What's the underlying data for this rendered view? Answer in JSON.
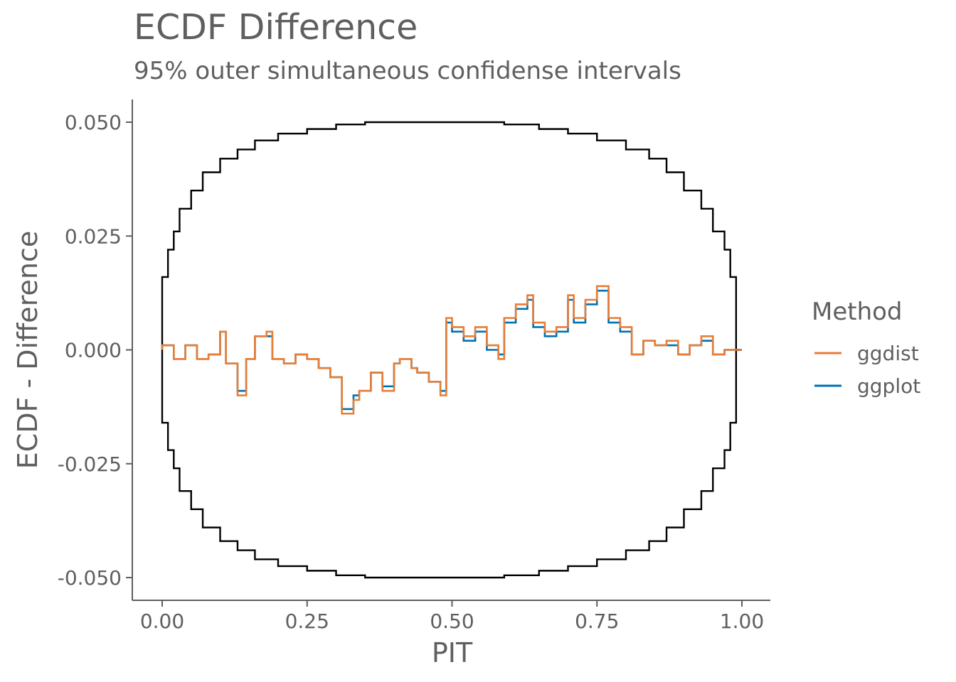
{
  "chart_data": {
    "type": "line",
    "title": "ECDF Difference",
    "subtitle": "95% outer simultaneous confidense intervals",
    "xlabel": "PIT",
    "ylabel": "ECDF - Difference",
    "xlim": [
      0,
      1
    ],
    "ylim": [
      -0.05,
      0.05
    ],
    "x_ticks": [
      "0.00",
      "0.25",
      "0.50",
      "0.75",
      "1.00"
    ],
    "y_ticks": [
      "0.050",
      "0.025",
      "0.000",
      "-0.025",
      "-0.050"
    ],
    "x_tick_values": [
      0,
      0.25,
      0.5,
      0.75,
      1
    ],
    "y_tick_values": [
      0.05,
      0.025,
      0,
      -0.025,
      -0.05
    ],
    "grid": false,
    "legend": {
      "title": "Method",
      "position": "right"
    },
    "envelope": {
      "color": "#000000",
      "x": [
        0,
        0.01,
        0.02,
        0.03,
        0.05,
        0.07,
        0.1,
        0.13,
        0.16,
        0.2,
        0.25,
        0.3,
        0.35,
        0.41,
        0.45,
        0.5,
        0.55,
        0.59,
        0.65,
        0.7,
        0.75,
        0.8,
        0.84,
        0.87,
        0.9,
        0.93,
        0.95,
        0.97,
        0.98,
        0.99,
        1
      ],
      "upper": [
        0,
        0.016,
        0.022,
        0.026,
        0.031,
        0.035,
        0.039,
        0.042,
        0.044,
        0.046,
        0.0475,
        0.0485,
        0.0495,
        0.05,
        0.05,
        0.05,
        0.05,
        0.05,
        0.0495,
        0.0485,
        0.0475,
        0.046,
        0.044,
        0.042,
        0.039,
        0.035,
        0.031,
        0.026,
        0.022,
        0.016,
        0
      ],
      "lower": [
        0,
        -0.016,
        -0.022,
        -0.026,
        -0.031,
        -0.035,
        -0.039,
        -0.042,
        -0.044,
        -0.046,
        -0.0475,
        -0.0485,
        -0.0495,
        -0.05,
        -0.05,
        -0.05,
        -0.05,
        -0.05,
        -0.0495,
        -0.0485,
        -0.0475,
        -0.046,
        -0.044,
        -0.042,
        -0.039,
        -0.035,
        -0.031,
        -0.026,
        -0.022,
        -0.016,
        0
      ]
    },
    "series": [
      {
        "name": "ggplot",
        "color": "#0072B2",
        "x": [
          0,
          0.02,
          0.04,
          0.06,
          0.08,
          0.1,
          0.11,
          0.13,
          0.145,
          0.16,
          0.18,
          0.19,
          0.21,
          0.23,
          0.25,
          0.27,
          0.29,
          0.31,
          0.33,
          0.34,
          0.36,
          0.38,
          0.4,
          0.41,
          0.43,
          0.44,
          0.46,
          0.48,
          0.49,
          0.5,
          0.52,
          0.54,
          0.56,
          0.58,
          0.59,
          0.61,
          0.63,
          0.64,
          0.66,
          0.68,
          0.7,
          0.71,
          0.73,
          0.75,
          0.77,
          0.79,
          0.81,
          0.83,
          0.85,
          0.87,
          0.89,
          0.91,
          0.93,
          0.95,
          0.97,
          0.99,
          1
        ],
        "y": [
          0,
          0.001,
          -0.002,
          0.001,
          -0.002,
          -0.001,
          0.004,
          -0.003,
          -0.009,
          -0.002,
          0.003,
          0.003,
          -0.002,
          -0.003,
          -0.001,
          -0.002,
          -0.004,
          -0.006,
          -0.013,
          -0.01,
          -0.009,
          -0.005,
          -0.008,
          -0.003,
          -0.002,
          -0.004,
          -0.005,
          -0.007,
          -0.009,
          0.006,
          0.004,
          0.002,
          0.004,
          0.0,
          -0.001,
          0.006,
          0.009,
          0.011,
          0.005,
          0.003,
          0.004,
          0.011,
          0.006,
          0.01,
          0.013,
          0.006,
          0.004,
          -0.001,
          0.002,
          0.001,
          0.001,
          -0.001,
          0.001,
          0.002,
          -0.001,
          0.0,
          0.0
        ]
      },
      {
        "name": "ggdist",
        "color": "#E87D37",
        "x": [
          0,
          0.02,
          0.04,
          0.06,
          0.08,
          0.1,
          0.11,
          0.13,
          0.145,
          0.16,
          0.18,
          0.19,
          0.21,
          0.23,
          0.25,
          0.27,
          0.29,
          0.31,
          0.33,
          0.34,
          0.36,
          0.38,
          0.4,
          0.41,
          0.43,
          0.44,
          0.46,
          0.48,
          0.49,
          0.5,
          0.52,
          0.54,
          0.56,
          0.58,
          0.59,
          0.61,
          0.63,
          0.64,
          0.66,
          0.68,
          0.7,
          0.71,
          0.73,
          0.75,
          0.77,
          0.79,
          0.81,
          0.83,
          0.85,
          0.87,
          0.89,
          0.91,
          0.93,
          0.95,
          0.97,
          0.99,
          1
        ],
        "y": [
          0,
          0.001,
          -0.002,
          0.001,
          -0.002,
          -0.001,
          0.004,
          -0.003,
          -0.01,
          -0.002,
          0.003,
          0.004,
          -0.002,
          -0.003,
          -0.001,
          -0.002,
          -0.004,
          -0.006,
          -0.014,
          -0.011,
          -0.009,
          -0.005,
          -0.009,
          -0.003,
          -0.002,
          -0.004,
          -0.005,
          -0.007,
          -0.01,
          0.007,
          0.005,
          0.003,
          0.005,
          0.001,
          -0.002,
          0.007,
          0.01,
          0.012,
          0.006,
          0.004,
          0.005,
          0.012,
          0.007,
          0.011,
          0.014,
          0.007,
          0.005,
          -0.001,
          0.002,
          0.001,
          0.002,
          -0.001,
          0.001,
          0.003,
          -0.001,
          0.0,
          0.0
        ]
      }
    ]
  }
}
